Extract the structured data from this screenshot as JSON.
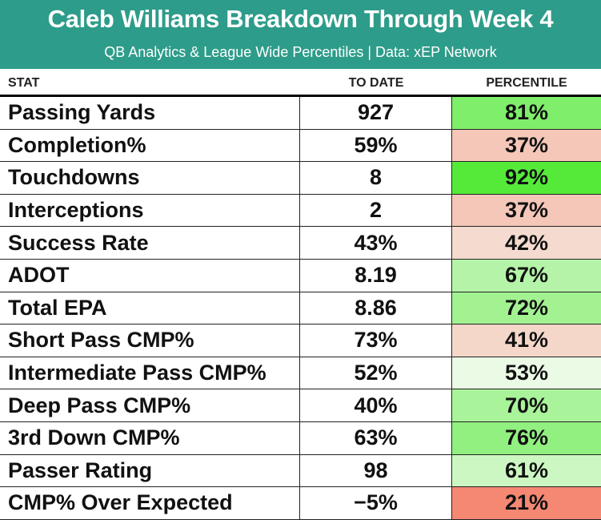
{
  "header": {
    "title": "Caleb Williams Breakdown Through Week 4",
    "subtitle": "QB Analytics & League Wide Percentiles | Data: xEP Network"
  },
  "columns": {
    "stat": "STAT",
    "to_date": "TO DATE",
    "percentile": "PERCENTILE"
  },
  "colors": {
    "header_bg": "#2e9c8a",
    "pct_low": "#f4846e",
    "pct_mid": "#f6fbf2",
    "pct_high": "#55ea3a"
  },
  "chart_data": {
    "type": "table",
    "title": "Caleb Williams Breakdown Through Week 4",
    "subtitle": "QB Analytics & League Wide Percentiles | Data: xEP Network",
    "columns": [
      "STAT",
      "TO DATE",
      "PERCENTILE"
    ],
    "rows": [
      {
        "stat": "Passing Yards",
        "to_date": "927",
        "percentile": "81%",
        "pct_value": 81
      },
      {
        "stat": "Completion%",
        "to_date": "59%",
        "percentile": "37%",
        "pct_value": 37
      },
      {
        "stat": "Touchdowns",
        "to_date": "8",
        "percentile": "92%",
        "pct_value": 92
      },
      {
        "stat": "Interceptions",
        "to_date": "2",
        "percentile": "37%",
        "pct_value": 37
      },
      {
        "stat": "Success Rate",
        "to_date": "43%",
        "percentile": "42%",
        "pct_value": 42
      },
      {
        "stat": "ADOT",
        "to_date": "8.19",
        "percentile": "67%",
        "pct_value": 67
      },
      {
        "stat": "Total EPA",
        "to_date": "8.86",
        "percentile": "72%",
        "pct_value": 72
      },
      {
        "stat": "Short Pass CMP%",
        "to_date": "73%",
        "percentile": "41%",
        "pct_value": 41
      },
      {
        "stat": "Intermediate Pass CMP%",
        "to_date": "52%",
        "percentile": "53%",
        "pct_value": 53
      },
      {
        "stat": "Deep Pass CMP%",
        "to_date": "40%",
        "percentile": "70%",
        "pct_value": 70
      },
      {
        "stat": "3rd Down CMP%",
        "to_date": "63%",
        "percentile": "76%",
        "pct_value": 76
      },
      {
        "stat": "Passer Rating",
        "to_date": "98",
        "percentile": "61%",
        "pct_value": 61
      },
      {
        "stat": "CMP% Over Expected",
        "to_date": "−5%",
        "percentile": "21%",
        "pct_value": 21
      }
    ]
  }
}
